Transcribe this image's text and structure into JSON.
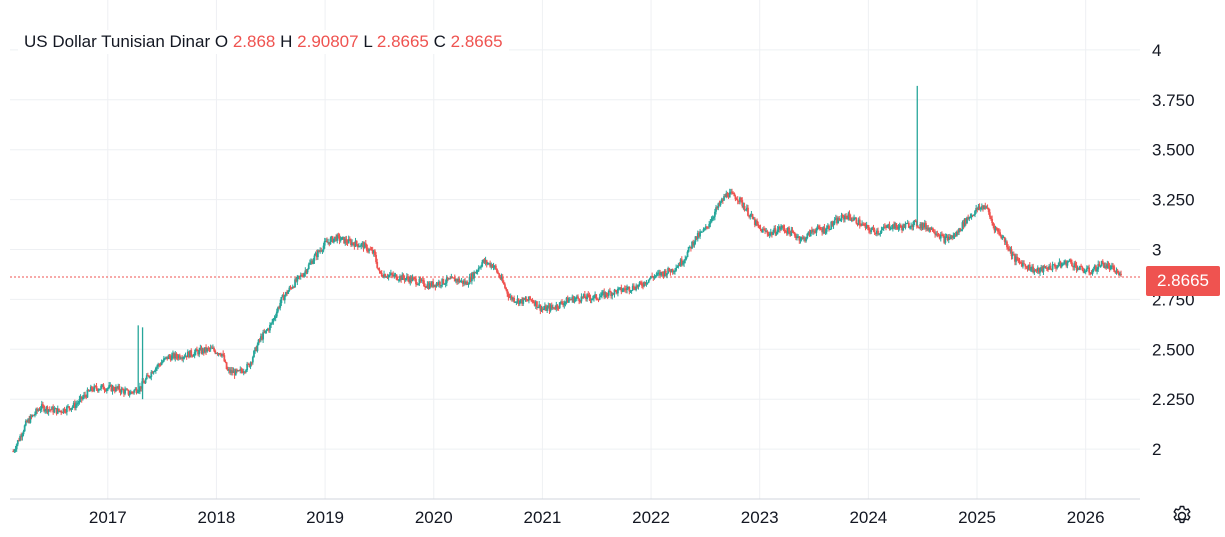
{
  "legend": {
    "name": "US Dollar Tunisian Dinar",
    "o_label": "O",
    "o": "2.868",
    "h_label": "H",
    "h": "2.90807",
    "l_label": "L",
    "l": "2.8665",
    "c_label": "C",
    "c": "2.8665"
  },
  "last_price_label": "2.8665",
  "colors": {
    "up": "#26a69a",
    "down": "#ef5350",
    "grid": "#eef0f3",
    "text": "#131722"
  },
  "icons": {
    "settings": "gear-icon"
  },
  "chart_data": {
    "type": "candlestick",
    "title": "",
    "xlabel": "",
    "ylabel": "",
    "ylim": [
      1.75,
      4.25
    ],
    "y_ticks": [
      {
        "value": 2.0,
        "label": "2"
      },
      {
        "value": 2.25,
        "label": "2.250"
      },
      {
        "value": 2.5,
        "label": "2.500"
      },
      {
        "value": 2.75,
        "label": "2.750"
      },
      {
        "value": 3.0,
        "label": "3"
      },
      {
        "value": 3.25,
        "label": "3.250"
      },
      {
        "value": 3.5,
        "label": "3.500"
      },
      {
        "value": 3.75,
        "label": "3.750"
      },
      {
        "value": 4.0,
        "label": "4"
      }
    ],
    "x_ticks": [
      {
        "value": 2017.0,
        "label": "2017"
      },
      {
        "value": 2018.0,
        "label": "2018"
      },
      {
        "value": 2019.0,
        "label": "2019"
      },
      {
        "value": 2020.0,
        "label": "2020"
      },
      {
        "value": 2021.0,
        "label": "2021"
      },
      {
        "value": 2022.0,
        "label": "2022"
      },
      {
        "value": 2023.0,
        "label": "2023"
      },
      {
        "value": 2024.0,
        "label": "2024"
      },
      {
        "value": 2025.0,
        "label": "2025"
      },
      {
        "value": 2026.0,
        "label": "2026"
      }
    ],
    "x_range": [
      2016.1,
      2026.5
    ],
    "last_price": 2.8665,
    "price_path": [
      [
        2016.13,
        1.99
      ],
      [
        2016.25,
        2.13
      ],
      [
        2016.38,
        2.21
      ],
      [
        2016.55,
        2.19
      ],
      [
        2016.7,
        2.22
      ],
      [
        2016.85,
        2.3
      ],
      [
        2016.95,
        2.31
      ],
      [
        2017.1,
        2.3
      ],
      [
        2017.2,
        2.28
      ],
      [
        2017.3,
        2.31
      ],
      [
        2017.42,
        2.4
      ],
      [
        2017.55,
        2.46
      ],
      [
        2017.7,
        2.47
      ],
      [
        2017.85,
        2.49
      ],
      [
        2017.95,
        2.5
      ],
      [
        2018.05,
        2.48
      ],
      [
        2018.1,
        2.39
      ],
      [
        2018.2,
        2.38
      ],
      [
        2018.3,
        2.42
      ],
      [
        2018.4,
        2.55
      ],
      [
        2018.5,
        2.62
      ],
      [
        2018.6,
        2.75
      ],
      [
        2018.7,
        2.82
      ],
      [
        2018.8,
        2.88
      ],
      [
        2018.9,
        2.96
      ],
      [
        2019.0,
        3.03
      ],
      [
        2019.1,
        3.06
      ],
      [
        2019.2,
        3.04
      ],
      [
        2019.35,
        3.02
      ],
      [
        2019.45,
        2.98
      ],
      [
        2019.5,
        2.88
      ],
      [
        2019.6,
        2.87
      ],
      [
        2019.8,
        2.85
      ],
      [
        2019.95,
        2.82
      ],
      [
        2020.1,
        2.84
      ],
      [
        2020.2,
        2.85
      ],
      [
        2020.3,
        2.83
      ],
      [
        2020.4,
        2.9
      ],
      [
        2020.45,
        2.94
      ],
      [
        2020.55,
        2.92
      ],
      [
        2020.62,
        2.85
      ],
      [
        2020.7,
        2.76
      ],
      [
        2020.8,
        2.74
      ],
      [
        2020.9,
        2.75
      ],
      [
        2021.0,
        2.7
      ],
      [
        2021.1,
        2.71
      ],
      [
        2021.25,
        2.75
      ],
      [
        2021.4,
        2.76
      ],
      [
        2021.5,
        2.76
      ],
      [
        2021.6,
        2.78
      ],
      [
        2021.75,
        2.8
      ],
      [
        2021.9,
        2.82
      ],
      [
        2022.0,
        2.86
      ],
      [
        2022.1,
        2.88
      ],
      [
        2022.2,
        2.9
      ],
      [
        2022.3,
        2.95
      ],
      [
        2022.4,
        3.05
      ],
      [
        2022.5,
        3.1
      ],
      [
        2022.6,
        3.2
      ],
      [
        2022.7,
        3.28
      ],
      [
        2022.8,
        3.26
      ],
      [
        2022.9,
        3.18
      ],
      [
        2023.0,
        3.1
      ],
      [
        2023.1,
        3.08
      ],
      [
        2023.2,
        3.11
      ],
      [
        2023.3,
        3.08
      ],
      [
        2023.4,
        3.05
      ],
      [
        2023.5,
        3.1
      ],
      [
        2023.6,
        3.1
      ],
      [
        2023.7,
        3.14
      ],
      [
        2023.8,
        3.17
      ],
      [
        2023.9,
        3.14
      ],
      [
        2024.0,
        3.1
      ],
      [
        2024.1,
        3.09
      ],
      [
        2024.2,
        3.12
      ],
      [
        2024.3,
        3.11
      ],
      [
        2024.4,
        3.13
      ],
      [
        2024.5,
        3.12
      ],
      [
        2024.6,
        3.1
      ],
      [
        2024.7,
        3.05
      ],
      [
        2024.8,
        3.07
      ],
      [
        2024.9,
        3.15
      ],
      [
        2025.0,
        3.2
      ],
      [
        2025.08,
        3.22
      ],
      [
        2025.15,
        3.12
      ],
      [
        2025.25,
        3.05
      ],
      [
        2025.35,
        2.95
      ],
      [
        2025.45,
        2.92
      ],
      [
        2025.55,
        2.89
      ],
      [
        2025.65,
        2.91
      ],
      [
        2025.75,
        2.92
      ],
      [
        2025.85,
        2.94
      ],
      [
        2025.95,
        2.9
      ],
      [
        2026.05,
        2.89
      ],
      [
        2026.15,
        2.93
      ],
      [
        2026.25,
        2.9
      ],
      [
        2026.33,
        2.8665
      ]
    ],
    "spikes": [
      {
        "x": 2017.28,
        "low": 2.28,
        "high": 2.62
      },
      {
        "x": 2017.32,
        "low": 2.25,
        "high": 2.61
      },
      {
        "x": 2024.45,
        "low": 3.12,
        "high": 3.82
      }
    ]
  }
}
